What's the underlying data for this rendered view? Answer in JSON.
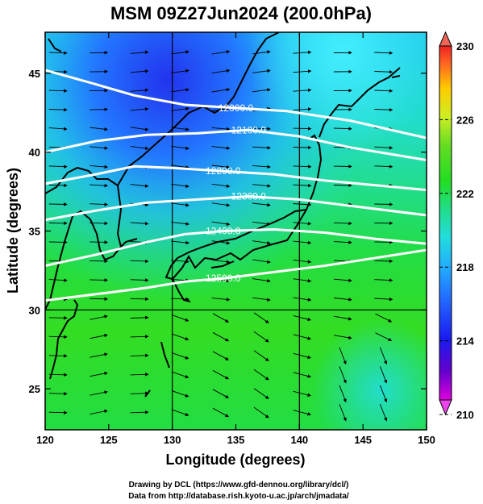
{
  "title": "MSM 09Z27Jun2024 (200.0hPa)",
  "xlabel": "Longitude (degrees)",
  "ylabel": "Latitude  (degrees)",
  "footer": {
    "line1": "Drawing by DCL (https://www.gfd-dennou.org/library/dcl/)",
    "line2": "Data from http://database.rish.kyoto-u.ac.jp/arch/jmadata/"
  },
  "map": {
    "lon_range": [
      120,
      150
    ],
    "lat_range": [
      22.4,
      47.6
    ],
    "x_ticks": [
      120,
      125,
      130,
      135,
      140,
      145,
      150
    ],
    "y_ticks": [
      25,
      30,
      35,
      40,
      45
    ],
    "gridlines_lon": [
      130,
      140
    ],
    "gridlines_lat": [
      30
    ],
    "field": "temperature",
    "contours": [
      {
        "label": "12000.0",
        "points": [
          [
            120,
            45.2
          ],
          [
            124,
            44.3
          ],
          [
            127,
            43.6
          ],
          [
            131,
            43.0
          ],
          [
            135,
            42.8
          ],
          [
            139,
            42.6
          ],
          [
            144,
            42.0
          ],
          [
            150,
            40.9
          ]
        ]
      },
      {
        "label": "12100.0",
        "points": [
          [
            120,
            40.0
          ],
          [
            124,
            40.7
          ],
          [
            128,
            41.1
          ],
          [
            132,
            41.2
          ],
          [
            136,
            41.4
          ],
          [
            140,
            41.0
          ],
          [
            144,
            40.3
          ],
          [
            150,
            39.5
          ]
        ]
      },
      {
        "label": "12200.0",
        "points": [
          [
            120,
            38.0
          ],
          [
            124,
            38.6
          ],
          [
            127,
            39.1
          ],
          [
            130,
            39.0
          ],
          [
            134,
            38.8
          ],
          [
            138,
            38.6
          ],
          [
            142,
            38.2
          ],
          [
            150,
            37.6
          ]
        ]
      },
      {
        "label": "12300.0",
        "points": [
          [
            120,
            35.7
          ],
          [
            124,
            36.3
          ],
          [
            128,
            36.8
          ],
          [
            132,
            37.0
          ],
          [
            136,
            37.2
          ],
          [
            140,
            37.0
          ],
          [
            144,
            36.6
          ],
          [
            150,
            36.0
          ]
        ]
      },
      {
        "label": "12400.0",
        "points": [
          [
            120,
            32.8
          ],
          [
            124,
            33.5
          ],
          [
            128,
            34.3
          ],
          [
            131,
            34.8
          ],
          [
            134,
            35.0
          ],
          [
            138,
            35.1
          ],
          [
            142,
            34.9
          ],
          [
            146,
            34.5
          ],
          [
            150,
            34.2
          ]
        ]
      },
      {
        "label": "12500.0",
        "points": [
          [
            120,
            30.6
          ],
          [
            124,
            31.0
          ],
          [
            128,
            31.4
          ],
          [
            131,
            31.8
          ],
          [
            134,
            32.0
          ],
          [
            138,
            32.4
          ],
          [
            142,
            32.8
          ],
          [
            146,
            33.3
          ],
          [
            150,
            33.8
          ]
        ]
      }
    ],
    "colorbar": {
      "min": 210,
      "max": 230,
      "tick_labels": [
        "230",
        "226",
        "222",
        "218",
        "214",
        "210"
      ],
      "colors": [
        "#dd00dd",
        "#6600cc",
        "#1a1aee",
        "#2266ff",
        "#22aaff",
        "#22dddd",
        "#22dd88",
        "#22dd22",
        "#66dd22",
        "#ccee22",
        "#ffcc00",
        "#ff6622",
        "#ee2222"
      ]
    }
  }
}
